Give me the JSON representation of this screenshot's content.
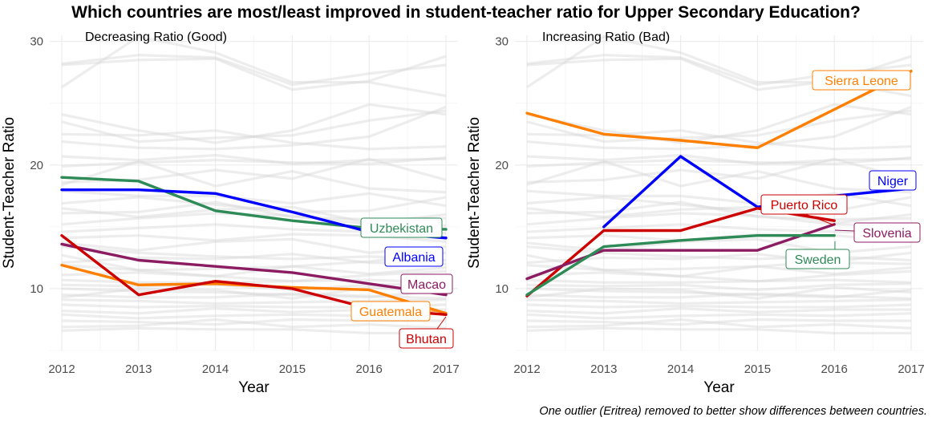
{
  "title": "Which countries are most/least improved in student-teacher ratio for Upper Secondary Education?",
  "caption": "One outlier (Eritrea) removed to better show differences between countries.",
  "chart_data": [
    {
      "type": "line",
      "subtitle": "Decreasing Ratio (Good)",
      "xlabel": "Year",
      "ylabel": "Student-Teacher Ratio",
      "xlim": [
        2012,
        2017
      ],
      "ylim": [
        5,
        30.5
      ],
      "x_ticks": [
        "2012",
        "2013",
        "2014",
        "2015",
        "2016",
        "2017"
      ],
      "y_ticks": [
        "10",
        "20",
        "30"
      ],
      "series": [
        {
          "name": "Uzbekistan",
          "color": "#2e8b57",
          "x": [
            2012,
            2013,
            2014,
            2015,
            2016,
            2017
          ],
          "values": [
            19.0,
            18.7,
            16.3,
            15.5,
            14.9,
            14.8
          ]
        },
        {
          "name": "Albania",
          "color": "#0000ff",
          "x": [
            2012,
            2013,
            2014,
            2015,
            2016,
            2017
          ],
          "values": [
            18.0,
            18.0,
            17.7,
            16.2,
            14.6,
            14.1
          ]
        },
        {
          "name": "Macao",
          "color": "#8b1c62",
          "x": [
            2012,
            2013,
            2014,
            2015,
            2016,
            2017
          ],
          "values": [
            13.6,
            12.3,
            11.8,
            11.3,
            10.4,
            9.5
          ]
        },
        {
          "name": "Guatemala",
          "color": "#ff7f00",
          "x": [
            2012,
            2013,
            2014,
            2015,
            2016,
            2017
          ],
          "values": [
            11.9,
            10.3,
            10.4,
            10.1,
            9.9,
            8.0
          ]
        },
        {
          "name": "Bhutan",
          "color": "#cd0000",
          "x": [
            2012,
            2013,
            2014,
            2015,
            2016,
            2017
          ],
          "values": [
            14.3,
            9.5,
            10.6,
            10.0,
            8.4,
            7.9
          ]
        }
      ]
    },
    {
      "type": "line",
      "subtitle": "Increasing Ratio (Bad)",
      "xlabel": "Year",
      "ylabel": "Student-Teacher Ratio",
      "xlim": [
        2012,
        2017
      ],
      "ylim": [
        5,
        30.5
      ],
      "x_ticks": [
        "2012",
        "2013",
        "2014",
        "2015",
        "2016",
        "2017"
      ],
      "y_ticks": [
        "10",
        "20",
        "30"
      ],
      "series": [
        {
          "name": "Sierra Leone",
          "color": "#ff7f00",
          "x": [
            2012,
            2013,
            2014,
            2015,
            2016,
            2017
          ],
          "values": [
            24.2,
            22.5,
            22.0,
            21.4,
            24.5,
            27.6
          ]
        },
        {
          "name": "Niger",
          "color": "#0000ff",
          "x": [
            2013,
            2014,
            2015,
            2016,
            2017
          ],
          "values": [
            15.0,
            20.7,
            16.6,
            17.5,
            18.1
          ]
        },
        {
          "name": "Puerto Rico",
          "color": "#cd0000",
          "x": [
            2012,
            2013,
            2014,
            2015,
            2016
          ],
          "values": [
            9.4,
            14.7,
            14.7,
            16.5,
            15.5
          ]
        },
        {
          "name": "Slovenia",
          "color": "#8b1c62",
          "x": [
            2012,
            2013,
            2014,
            2015,
            2016
          ],
          "values": [
            10.8,
            13.1,
            13.1,
            13.1,
            15.2
          ]
        },
        {
          "name": "Sweden",
          "color": "#2e8b57",
          "x": [
            2012,
            2013,
            2014,
            2015,
            2016
          ],
          "values": [
            9.5,
            13.4,
            13.9,
            14.3,
            14.3
          ]
        }
      ]
    }
  ],
  "background_lines": [
    [
      28.2,
      28.9,
      28.7,
      26.5,
      27.4,
      28.1
    ],
    [
      28.1,
      28.5,
      28.6,
      26.1,
      26.8,
      28.8
    ],
    [
      26.3,
      30.4,
      29.1,
      26.7,
      26.7,
      25.6
    ],
    [
      24.1,
      22.8,
      21.8,
      22.8,
      24.9,
      24.1
    ],
    [
      23.5,
      21.9,
      22.2,
      22.4,
      23.6,
      24.4
    ],
    [
      22.5,
      22.4,
      22.8,
      21.8,
      21.3,
      21.5
    ],
    [
      21.9,
      21.4,
      21.3,
      21.6,
      22.3,
      24.7
    ],
    [
      20.7,
      20.4,
      20.8,
      20.1,
      20.4,
      20.5
    ],
    [
      19.9,
      20.2,
      20.4,
      20.2,
      20.1,
      20.6
    ],
    [
      18.4,
      20.3,
      18.3,
      19.5,
      18.1,
      17.8
    ],
    [
      17.9,
      17.5,
      17.5,
      16.9,
      17.7,
      16.7
    ],
    [
      16.9,
      17.4,
      16.8,
      16.2,
      16.3,
      17.4
    ],
    [
      16.1,
      16.2,
      17.0,
      15.8,
      15.6,
      15.7
    ],
    [
      15.2,
      15.7,
      16.1,
      15.9,
      15.2,
      15.1
    ],
    [
      14.6,
      14.9,
      15.2,
      14.8,
      14.6,
      14.5
    ],
    [
      14.1,
      14.3,
      13.9,
      14.4,
      14.3,
      13.8
    ],
    [
      13.7,
      13.1,
      13.8,
      14.0,
      12.9,
      13.4
    ],
    [
      13.4,
      12.9,
      12.6,
      12.4,
      12.6,
      12.3
    ],
    [
      12.1,
      12.5,
      12.4,
      12.8,
      12.1,
      12.0
    ],
    [
      11.9,
      11.5,
      11.6,
      11.8,
      11.2,
      11.7
    ],
    [
      11.1,
      11.3,
      11.0,
      10.6,
      11.1,
      11.4
    ],
    [
      10.7,
      10.5,
      10.5,
      10.6,
      10.7,
      10.5
    ],
    [
      10.3,
      10.2,
      10.3,
      9.9,
      10.3,
      10.4
    ],
    [
      10.0,
      9.8,
      9.7,
      9.5,
      9.3,
      9.9
    ],
    [
      9.5,
      9.3,
      9.3,
      9.6,
      9.4,
      9.2
    ],
    [
      9.1,
      9.0,
      8.8,
      8.9,
      9.0,
      9.1
    ],
    [
      8.7,
      8.5,
      8.6,
      8.5,
      8.5,
      8.7
    ],
    [
      8.2,
      8.0,
      8.4,
      8.1,
      8.3,
      8.3
    ],
    [
      7.9,
      7.6,
      7.8,
      7.9,
      7.8,
      8.0
    ],
    [
      7.4,
      7.3,
      7.1,
      7.5,
      7.4,
      7.4
    ],
    [
      6.9,
      7.0,
      7.5,
      6.9,
      7.1,
      6.8
    ],
    [
      6.6,
      6.8,
      6.7,
      6.7,
      6.4,
      6.4
    ],
    [
      18.6,
      18.8,
      19.6,
      18.9,
      20.5,
      18.8
    ],
    [
      16.5,
      15.8,
      16.4,
      16.6,
      15.3,
      16.0
    ],
    [
      12.7,
      11.5,
      11.0,
      11.8,
      12.2,
      12.9
    ],
    [
      9.3,
      10.0,
      9.9,
      9.2,
      10.1,
      9.7
    ]
  ]
}
